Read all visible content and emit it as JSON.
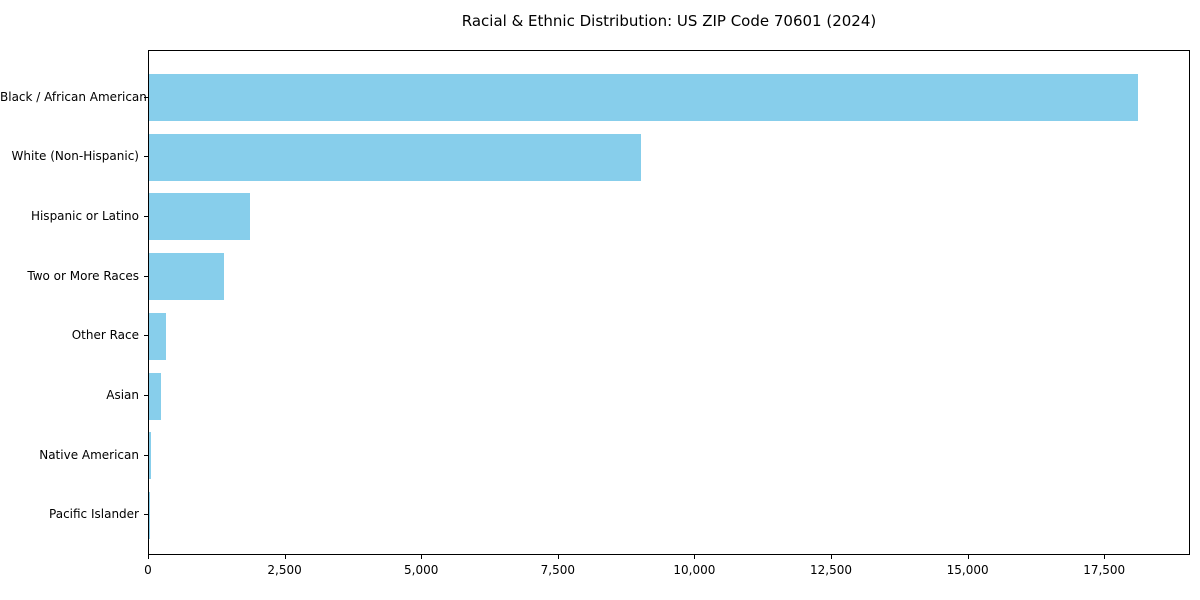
{
  "title": "Racial & Ethnic Distribution: US ZIP Code 70601 (2024)",
  "colors": {
    "bar": "#87CEEB",
    "axis": "#000000",
    "text": "#000000",
    "background": "#ffffff"
  },
  "chart_data": {
    "type": "bar",
    "orientation": "horizontal",
    "title": "Racial & Ethnic Distribution: US ZIP Code 70601 (2024)",
    "categories": [
      "Black / African American",
      "White (Non-Hispanic)",
      "Hispanic or Latino",
      "Two or More Races",
      "Other Race",
      "Asian",
      "Native American",
      "Pacific Islander"
    ],
    "values": [
      18100,
      9000,
      1850,
      1380,
      320,
      220,
      35,
      10
    ],
    "xlabel": "",
    "ylabel": "",
    "xlim": [
      0,
      19070
    ],
    "xticks": [
      0,
      2500,
      5000,
      7500,
      10000,
      12500,
      15000,
      17500
    ],
    "xtick_labels": [
      "0",
      "2,500",
      "5,000",
      "7,500",
      "10,000",
      "12,500",
      "15,000",
      "17,500"
    ],
    "grid": false,
    "legend": null,
    "bar_color": "#87CEEB",
    "frame": "full-box"
  }
}
